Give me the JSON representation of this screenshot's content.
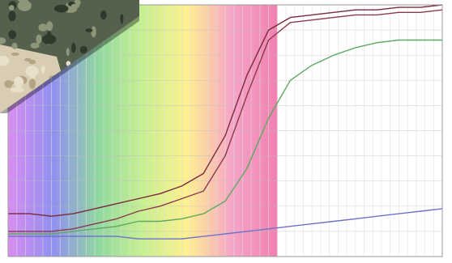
{
  "chart_data": {
    "type": "line",
    "xlim": [
      0,
      100
    ],
    "ylim": [
      0,
      100
    ],
    "grid": true,
    "x": [
      0,
      5,
      10,
      15,
      20,
      25,
      30,
      35,
      40,
      45,
      50,
      55,
      60,
      65,
      70,
      75,
      80,
      85,
      90,
      95,
      100
    ],
    "series": [
      {
        "color": "#7a2a3a",
        "values": [
          17,
          17,
          16,
          17,
          19,
          21,
          23,
          25,
          28,
          33,
          48,
          72,
          90,
          95,
          96,
          97,
          98,
          98,
          99,
          99,
          100
        ]
      },
      {
        "color": "#8a3a4a",
        "values": [
          10,
          10,
          10,
          11,
          13,
          15,
          18,
          20,
          23,
          26,
          40,
          64,
          86,
          93,
          94,
          95,
          96,
          96,
          97,
          97,
          98
        ]
      },
      {
        "color": "#5fa860",
        "values": [
          9,
          9,
          9,
          10,
          11,
          12,
          14,
          14,
          15,
          17,
          22,
          35,
          55,
          70,
          76,
          80,
          83,
          85,
          86,
          86,
          86
        ]
      },
      {
        "color": "#7070c8",
        "values": [
          8,
          8,
          8,
          8,
          8,
          8,
          7,
          7,
          7,
          8,
          9,
          10,
          11,
          12,
          13,
          14,
          15,
          16,
          17,
          18,
          19
        ]
      }
    ],
    "background": {
      "spectrum_colors": [
        "#d88ef0",
        "#9090f0",
        "#90d8a0",
        "#c8f090",
        "#fff090",
        "#f6a4c8",
        "#f080b0"
      ],
      "spectrum_extent_x": [
        0,
        62
      ]
    }
  },
  "photo": {
    "description_icon": "camouflage-fabric-photo",
    "colors": [
      "#55604d",
      "#2f3a2c",
      "#8d9678",
      "#d8cdb2",
      "#b3a583"
    ]
  }
}
